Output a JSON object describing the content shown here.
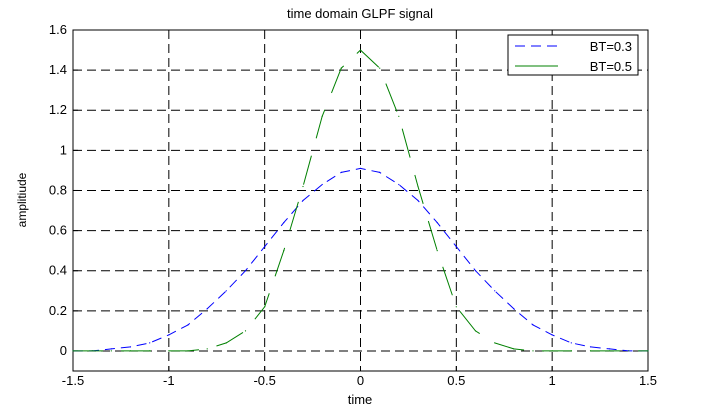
{
  "chart_data": {
    "type": "line",
    "title": "time domain GLPF signal",
    "xlabel": "time",
    "ylabel": "amplitiude",
    "xlim": [
      -1.5,
      1.5
    ],
    "ylim": [
      -0.1,
      1.6
    ],
    "xticks": [
      -1.5,
      -1,
      -0.5,
      0,
      0.5,
      1,
      1.5
    ],
    "xtick_labels": [
      "-1.5",
      "-1",
      "-0.5",
      "0",
      "0.5",
      "1",
      "1.5"
    ],
    "yticks": [
      0,
      0.2,
      0.4,
      0.6,
      0.8,
      1,
      1.2,
      1.4,
      1.6
    ],
    "ytick_labels": [
      "0",
      "0.2",
      "0.4",
      "0.6",
      "0.8",
      "1",
      "1.2",
      "1.4",
      "1.6"
    ],
    "grid": true,
    "legend_position": "top-right",
    "x": [
      -1.5,
      -1.4,
      -1.3,
      -1.2,
      -1.1,
      -1.0,
      -0.9,
      -0.8,
      -0.7,
      -0.6,
      -0.5,
      -0.4,
      -0.3,
      -0.2,
      -0.1,
      0.0,
      0.1,
      0.2,
      0.3,
      0.4,
      0.5,
      0.6,
      0.7,
      0.8,
      0.9,
      1.0,
      1.1,
      1.2,
      1.3,
      1.4,
      1.5
    ],
    "series": [
      {
        "name": "BT=0.3",
        "color": "#0000ff",
        "style": "dashed",
        "values": [
          0.0,
          0.0,
          0.01,
          0.02,
          0.04,
          0.08,
          0.13,
          0.21,
          0.3,
          0.4,
          0.52,
          0.64,
          0.75,
          0.83,
          0.89,
          0.91,
          0.89,
          0.83,
          0.75,
          0.64,
          0.52,
          0.4,
          0.3,
          0.21,
          0.13,
          0.08,
          0.04,
          0.02,
          0.01,
          0.0,
          0.0
        ]
      },
      {
        "name": "BT=0.5",
        "color": "#008000",
        "style": "solid",
        "values": [
          0.0,
          0.0,
          0.0,
          0.0,
          0.0,
          0.0,
          0.0,
          0.01,
          0.04,
          0.1,
          0.22,
          0.5,
          0.82,
          1.17,
          1.41,
          1.5,
          1.41,
          1.17,
          0.82,
          0.5,
          0.22,
          0.1,
          0.04,
          0.01,
          0.0,
          0.0,
          0.0,
          0.0,
          0.0,
          0.0,
          0.0
        ]
      }
    ]
  }
}
